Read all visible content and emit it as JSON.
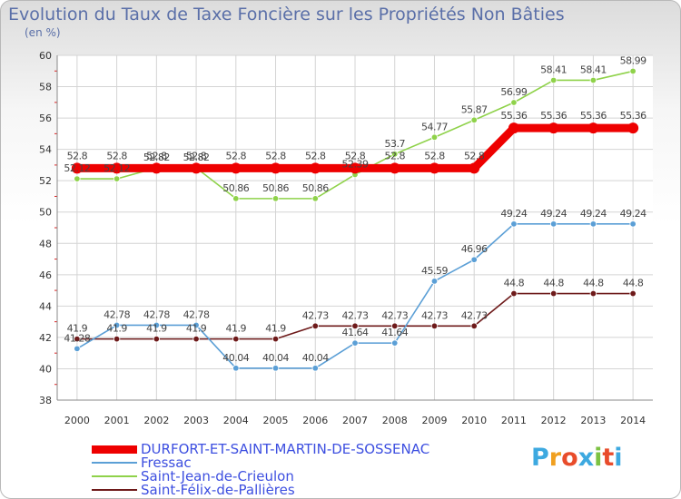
{
  "chart_data": {
    "type": "line",
    "title": "Evolution du Taux de Taxe Foncière sur les Propriétés Non Bâties",
    "ylabel": "(en %)",
    "ylim": [
      38,
      60
    ],
    "yticks": [
      "38",
      "40",
      "42",
      "44",
      "46",
      "48",
      "50",
      "52",
      "54",
      "56",
      "58",
      "60"
    ],
    "categories": [
      "2000",
      "2001",
      "2002",
      "2003",
      "2004",
      "2005",
      "2006",
      "2007",
      "2008",
      "2009",
      "2010",
      "2011",
      "2012",
      "2013",
      "2014"
    ],
    "series": [
      {
        "name": "DURFORT-ET-SAINT-MARTIN-DE-SOSSENAC",
        "color": "#ee0000",
        "values": [
          52.8,
          52.8,
          52.8,
          52.8,
          52.8,
          52.8,
          52.8,
          52.8,
          52.8,
          52.8,
          52.8,
          55.36,
          55.36,
          55.36,
          55.36
        ],
        "labels": [
          "52.8",
          "52.8",
          "52.8",
          "52.8",
          "52.8",
          "52.8",
          "52.8",
          "52.8",
          "52.8",
          "52.8",
          "52.8",
          "55.36",
          "55.36",
          "55.36",
          "55.36"
        ]
      },
      {
        "name": "Fressac",
        "color": "#5b9fd6",
        "values": [
          41.28,
          42.78,
          42.78,
          42.78,
          40.04,
          40.04,
          40.04,
          41.64,
          41.64,
          45.59,
          46.96,
          49.24,
          49.24,
          49.24,
          49.24
        ],
        "labels": [
          "41.28",
          "42.78",
          "42.78",
          "42.78",
          "40.04",
          "40.04",
          "40.04",
          "41.64",
          "41.64",
          "45.59",
          "46.96",
          "49.24",
          "49.24",
          "49.24",
          "49.24"
        ]
      },
      {
        "name": "Saint-Jean-de-Crieulon",
        "color": "#8fd24a",
        "values": [
          52.12,
          52.12,
          52.82,
          52.82,
          50.86,
          50.86,
          50.86,
          52.39,
          53.7,
          54.77,
          55.87,
          56.99,
          58.41,
          58.41,
          58.99
        ],
        "labels": [
          "52.12",
          "52.12",
          "52.82",
          "52.82",
          "50.86",
          "50.86",
          "50.86",
          "52.39",
          "53.7",
          "54.77",
          "55.87",
          "56.99",
          "58.41",
          "58.41",
          "58.99"
        ]
      },
      {
        "name": "Saint-Félix-de-Pallières",
        "color": "#6e1a1a",
        "values": [
          41.9,
          41.9,
          41.9,
          41.9,
          41.9,
          41.9,
          42.73,
          42.73,
          42.73,
          42.73,
          42.73,
          44.8,
          44.8,
          44.8,
          44.8
        ],
        "labels": [
          "41.9",
          "41.9",
          "41.9",
          "41.9",
          "41.9",
          "41.9",
          "42.73",
          "42.73",
          "42.73",
          "42.73",
          "42.73",
          "44.8",
          "44.8",
          "44.8",
          "44.8"
        ]
      }
    ],
    "grid": true,
    "legend": "bottom-left"
  },
  "logo": {
    "text": "Proxiti"
  }
}
